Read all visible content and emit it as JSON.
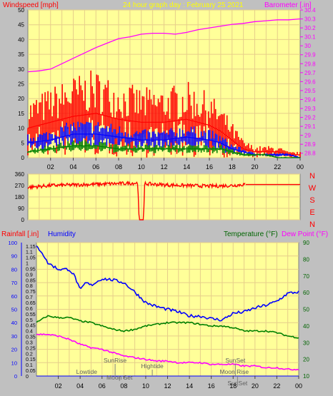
{
  "header": {
    "windspeed_label": "Windspeed [mph]",
    "title": "24 hour graph day : February 25 2021",
    "barometer_label": "Barometer [.in]"
  },
  "lower_header": {
    "rainfall_label": "Rainfall [.in]",
    "humidity_label": "Humidity",
    "temperature_label": "Temperature (°F)",
    "dewpoint_label": "Dew Point (°F)"
  },
  "x_ticks": [
    "02",
    "04",
    "06",
    "08",
    "10",
    "12",
    "14",
    "16",
    "18",
    "20",
    "22",
    "00"
  ],
  "direction_labels": [
    "N",
    "W",
    "S",
    "E",
    "N"
  ],
  "events": [
    {
      "label": "Lowtide",
      "hour": 4.6,
      "row": 2
    },
    {
      "label": "SunRise",
      "hour": 7.2,
      "row": 0
    },
    {
      "label": "Moon Set",
      "hour": 7.6,
      "row": 3
    },
    {
      "label": "Hightide",
      "hour": 10.6,
      "row": 1
    },
    {
      "label": "SunSet",
      "hour": 18.2,
      "row": 0
    },
    {
      "label": "Moon Rise",
      "hour": 18.1,
      "row": 2
    },
    {
      "label": "SunSet",
      "hour": 18.4,
      "row": 4
    }
  ],
  "colors": {
    "plot_bg": "#ffff99",
    "page_bg": "#c0c0c0",
    "grid": "#e6ce8a",
    "wind_gust": "#ff0000",
    "wind_avg": "#0000ff",
    "wind_low": "#008000",
    "barometer": "#ff00ff",
    "direction": "#ff0000",
    "humidity": "#0000ff",
    "temperature": "#008000",
    "dewpoint": "#ff00ff",
    "rain": "#0000ff",
    "title": "#ffff00"
  },
  "chart_data": [
    {
      "type": "line",
      "title": "24 hour graph day : February 25 2021",
      "ylabel": "Windspeed [mph]",
      "y2label": "Barometer [.in]",
      "x_unit": "hour",
      "ylim": [
        0,
        50
      ],
      "yticks": [
        0,
        5,
        10,
        15,
        20,
        25,
        30,
        35,
        40,
        45,
        50
      ],
      "y2lim": [
        28.75,
        30.4
      ],
      "y2ticks": [
        "28.8",
        "28.9",
        "29",
        "29.1",
        "29.2",
        "29.3",
        "29.4",
        "29.5",
        "29.6",
        "29.7",
        "29.8",
        "29.9",
        "30",
        "30.1",
        "30.2",
        "30.3",
        "30.4"
      ],
      "series": [
        {
          "role": "gust",
          "axis": "left",
          "x": [
            0,
            2,
            4,
            6,
            8,
            10,
            12,
            14,
            16,
            17,
            18,
            19,
            20,
            21,
            22,
            23,
            24
          ],
          "values": [
            10,
            12,
            14,
            15,
            13,
            12,
            12,
            13,
            11,
            9,
            6,
            3,
            2,
            2,
            2,
            1,
            1
          ]
        },
        {
          "role": "average",
          "axis": "left",
          "x": [
            0,
            2,
            4,
            6,
            8,
            10,
            12,
            14,
            16,
            17,
            18,
            19,
            20,
            21,
            22,
            23,
            24
          ],
          "values": [
            5,
            6,
            8,
            8,
            7,
            6,
            6,
            7,
            6,
            5,
            3,
            2,
            1,
            1,
            1,
            1,
            0
          ]
        },
        {
          "role": "low",
          "axis": "left",
          "x": [
            0,
            2,
            4,
            6,
            8,
            10,
            12,
            14,
            16,
            17,
            18,
            19,
            20,
            21,
            22,
            23,
            24
          ],
          "values": [
            2,
            3,
            4,
            4,
            3,
            3,
            3,
            3,
            3,
            3,
            2,
            1,
            1,
            1,
            0,
            0,
            0
          ]
        },
        {
          "role": "barometer",
          "axis": "right",
          "x": [
            0,
            1,
            2,
            3,
            4,
            5,
            6,
            7,
            8,
            9,
            10,
            11,
            12,
            13,
            14,
            15,
            16,
            17,
            18,
            19,
            20,
            21,
            22,
            23,
            24
          ],
          "values": [
            29.71,
            29.72,
            29.74,
            29.8,
            29.86,
            29.92,
            29.98,
            30.03,
            30.08,
            30.1,
            30.13,
            30.14,
            30.14,
            30.13,
            30.15,
            30.18,
            30.2,
            30.22,
            30.24,
            30.25,
            30.27,
            30.28,
            30.29,
            30.29,
            30.3
          ]
        }
      ]
    },
    {
      "type": "line",
      "title": "",
      "ylabel": "",
      "x_unit": "hour",
      "ylim": [
        0,
        360
      ],
      "yticks": [
        0,
        90,
        180,
        270,
        360
      ],
      "series": [
        {
          "role": "direction",
          "x": [
            0,
            2,
            4,
            6,
            8,
            9.7,
            9.8,
            10.2,
            10.3,
            12,
            14,
            16,
            18,
            19,
            20,
            22,
            24
          ],
          "values": [
            255,
            270,
            275,
            280,
            285,
            290,
            0,
            0,
            285,
            275,
            270,
            265,
            270,
            278,
            278,
            278,
            278
          ]
        }
      ]
    },
    {
      "type": "line",
      "title": "",
      "ylabel": "Rainfall [.in]",
      "y2label": "Temperature (°F)",
      "x_unit": "hour",
      "ylim": [
        0,
        100
      ],
      "yticks": [
        0,
        10,
        20,
        30,
        40,
        50,
        60,
        70,
        80,
        90,
        100
      ],
      "rain_ticks": [
        "0",
        "0.05",
        "0.1",
        "0.15",
        "0.2",
        "0.25",
        "0.3",
        "0.35",
        "0.4",
        "0.45",
        "0.5",
        "0.55",
        "0.6",
        "0.65",
        "0.7",
        "0.75",
        "0.8",
        "0.85",
        "0.9",
        "0.95",
        "1",
        "1.05",
        "1.1",
        "1.15"
      ],
      "y2lim": [
        10,
        90
      ],
      "y2ticks": [
        10,
        20,
        30,
        40,
        50,
        60,
        70,
        80,
        90
      ],
      "series": [
        {
          "role": "humidity",
          "axis": "left",
          "x": [
            0,
            0.5,
            1,
            2,
            3,
            3.5,
            4,
            4.5,
            5,
            6,
            7,
            8,
            9,
            10,
            11,
            12,
            13,
            14,
            15,
            16,
            17,
            18,
            19,
            20,
            21,
            22,
            23,
            24
          ],
          "values": [
            97,
            93,
            85,
            80,
            80,
            75,
            64,
            70,
            68,
            73,
            72,
            70,
            63,
            55,
            52,
            50,
            48,
            45,
            45,
            43,
            42,
            47,
            48,
            51,
            53,
            56,
            62,
            63
          ]
        },
        {
          "role": "temperature",
          "axis": "right",
          "x": [
            0,
            1,
            2,
            3,
            4,
            5,
            6,
            7,
            8,
            9,
            10,
            11,
            12,
            13,
            14,
            15,
            16,
            17,
            18,
            19,
            20,
            21,
            22,
            23,
            24
          ],
          "values": [
            42,
            46,
            45,
            45,
            43,
            42,
            40,
            38,
            37,
            38,
            40,
            41,
            42,
            42,
            42,
            41,
            40,
            40,
            39,
            37,
            37,
            37,
            36,
            34,
            33
          ]
        },
        {
          "role": "dewpoint",
          "axis": "right",
          "x": [
            0,
            1,
            2,
            3,
            4,
            5,
            6,
            7,
            8,
            9,
            10,
            11,
            12,
            13,
            14,
            15,
            16,
            17,
            18,
            19,
            20,
            21,
            22,
            23,
            24
          ],
          "values": [
            35,
            35,
            34,
            32,
            29,
            27,
            26,
            24,
            22,
            21,
            20,
            19,
            19,
            18,
            18,
            18,
            17,
            17,
            17,
            16,
            16,
            15,
            15,
            14,
            14
          ]
        },
        {
          "role": "rain",
          "axis": "left",
          "x": [
            0,
            24
          ],
          "values": [
            0,
            0
          ]
        }
      ]
    }
  ]
}
